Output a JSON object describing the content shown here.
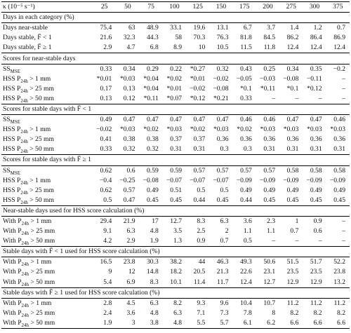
{
  "table": {
    "header": [
      "κ (10⁻⁵ s⁻¹)",
      "25",
      "50",
      "75",
      "100",
      "125",
      "150",
      "175",
      "200",
      "275",
      "300",
      "375"
    ],
    "sections": [
      {
        "title": "Days in each category (%)",
        "rows": [
          {
            "label": {
              "text": "Days near-stable"
            },
            "cells": [
              "75.4",
              "63",
              "48.9",
              "33.1",
              "19.6",
              "13.1",
              "6.7",
              "3.7",
              "1.4",
              "1.2",
              "0.7"
            ]
          },
          {
            "label": {
              "text": "Days stable, F̄ < 1"
            },
            "cells": [
              "21.6",
              "32.3",
              "44.3",
              "58",
              "70.3",
              "76.3",
              "81.8",
              "84.5",
              "86.2",
              "86.4",
              "86.9"
            ]
          },
          {
            "label": {
              "text": "Days stable, F̄ ≥ 1"
            },
            "cells": [
              "2.9",
              "4.7",
              "6.8",
              "8.9",
              "10",
              "10.5",
              "11.5",
              "11.8",
              "12.4",
              "12.4",
              "12.4"
            ]
          }
        ]
      },
      {
        "title": "Scores for near-stable days",
        "rows": [
          {
            "label": {
              "text": "SS",
              "sub": "MSE"
            },
            "cells": [
              "0.33",
              "0.34",
              "0.29",
              "0.22",
              "*0.27",
              "0.32",
              "0.43",
              "0.25",
              "0.34",
              "0.35",
              "−0.2"
            ]
          },
          {
            "label": {
              "text": "HSS P",
              "sub": "24h",
              "after": " > 1 mm"
            },
            "cells": [
              "*0.01",
              "*0.03",
              "*0.04",
              "*0.02",
              "*0.01",
              "−0.02",
              "−0.05",
              "−0.03",
              "−0.08",
              "−0.11",
              "–"
            ]
          },
          {
            "label": {
              "text": "HSS P",
              "sub": "24h",
              "after": " > 25 mm"
            },
            "cells": [
              "0.17",
              "0.13",
              "*0.04",
              "*0.01",
              "−0.02",
              "−0.08",
              "*0.1",
              "*0.11",
              "*0.1",
              "*0.12",
              "–"
            ]
          },
          {
            "label": {
              "text": "HSS P",
              "sub": "24h",
              "after": " > 50 mm"
            },
            "cells": [
              "0.13",
              "0.12",
              "*0.11",
              "*0.07",
              "*0.12",
              "*0.21",
              "0.33",
              "–",
              "–",
              "–",
              "–"
            ]
          }
        ]
      },
      {
        "title": "Scores for stable days with F̄ < 1",
        "rows": [
          {
            "label": {
              "text": "SS",
              "sub": "MSE"
            },
            "cells": [
              "0.49",
              "0.47",
              "0.47",
              "0.47",
              "0.47",
              "0.47",
              "0.46",
              "0.46",
              "0.47",
              "0.47",
              "0.46"
            ]
          },
          {
            "label": {
              "text": "HSS P",
              "sub": "24h",
              "after": " > 1 mm"
            },
            "cells": [
              "−0.02",
              "*0.03",
              "*0.02",
              "*0.03",
              "*0.02",
              "*0.03",
              "*0.02",
              "*0.03",
              "*0.03",
              "*0.03",
              "*0.03"
            ]
          },
          {
            "label": {
              "text": "HSS P",
              "sub": "24h",
              "after": " > 25 mm"
            },
            "cells": [
              "0.41",
              "0.38",
              "0.38",
              "0.37",
              "0.37",
              "0.36",
              "0.36",
              "0.36",
              "0.36",
              "0.36",
              "0.36"
            ]
          },
          {
            "label": {
              "text": "HSS P",
              "sub": "24h",
              "after": " > 50 mm"
            },
            "cells": [
              "0.33",
              "0.32",
              "0.32",
              "0.31",
              "0.31",
              "0.3",
              "0.3",
              "0.31",
              "0.31",
              "0.31",
              "0.31"
            ]
          }
        ]
      },
      {
        "title": "Scores for stable days with F̄ ≥ 1",
        "rows": [
          {
            "label": {
              "text": "SS",
              "sub": "MSE"
            },
            "cells": [
              "0.62",
              "0.6",
              "0.59",
              "0.59",
              "0.57",
              "0.57",
              "0.57",
              "0.57",
              "0.58",
              "0.58",
              "0.58"
            ]
          },
          {
            "label": {
              "text": "HSS P",
              "sub": "24h",
              "after": " > 1 mm"
            },
            "cells": [
              "−0.4",
              "−0.25",
              "−0.08",
              "−0.07",
              "−0.07",
              "−0.07",
              "−0.09",
              "−0.09",
              "−0.09",
              "−0.09",
              "−0.09"
            ]
          },
          {
            "label": {
              "text": "HSS P",
              "sub": "24h",
              "after": " > 25 mm"
            },
            "cells": [
              "0.62",
              "0.57",
              "0.49",
              "0.51",
              "0.5",
              "0.5",
              "0.49",
              "0.49",
              "0.49",
              "0.49",
              "0.49"
            ]
          },
          {
            "label": {
              "text": "HSS P",
              "sub": "24h",
              "after": " > 50 mm"
            },
            "cells": [
              "0.5",
              "0.47",
              "0.45",
              "0.45",
              "0.44",
              "0.45",
              "0.44",
              "0.45",
              "0.45",
              "0.45",
              "0.45"
            ]
          }
        ]
      },
      {
        "title": "Near-stable days used for HSS score calculation (%)",
        "rows": [
          {
            "label": {
              "text": "With P",
              "sub": "24h",
              "after": " > 1 mm"
            },
            "cells": [
              "29.4",
              "21.9",
              "17",
              "12.7",
              "8.3",
              "6.3",
              "3.6",
              "2.3",
              "1",
              "0.9",
              "–"
            ]
          },
          {
            "label": {
              "text": "With P",
              "sub": "24h",
              "after": " > 25 mm"
            },
            "cells": [
              "9.1",
              "6.3",
              "4.8",
              "3.5",
              "2.5",
              "2",
              "1.1",
              "1.1",
              "0.7",
              "0.6",
              "–"
            ]
          },
          {
            "label": {
              "text": "With P",
              "sub": "24h",
              "after": " > 50 mm"
            },
            "cells": [
              "4.2",
              "2.9",
              "1.9",
              "1.3",
              "0.9",
              "0.7",
              "0.5",
              "–",
              "–",
              "–",
              "–"
            ]
          }
        ]
      },
      {
        "title": "Stable days with F̄ < 1 used for HSS score calculation (%)",
        "rows": [
          {
            "label": {
              "text": "With P",
              "sub": "24h",
              "after": " > 1 mm"
            },
            "cells": [
              "16.5",
              "23.8",
              "30.3",
              "38.2",
              "44",
              "46.3",
              "49.3",
              "50.6",
              "51.5",
              "51.7",
              "52.2"
            ]
          },
          {
            "label": {
              "text": "With P",
              "sub": "24h",
              "after": " > 25 mm"
            },
            "cells": [
              "9",
              "12",
              "14.8",
              "18.2",
              "20.5",
              "21.3",
              "22.6",
              "23.1",
              "23.5",
              "23.5",
              "23.8"
            ]
          },
          {
            "label": {
              "text": "With P",
              "sub": "24h",
              "after": " > 50 mm"
            },
            "cells": [
              "5.4",
              "6.9",
              "8.3",
              "10.1",
              "11.4",
              "11.7",
              "12.4",
              "12.7",
              "12.9",
              "12.9",
              "13.2"
            ]
          }
        ]
      },
      {
        "title": "Stable days with F̄ ≥ 1 used for HSS score calculation (%)",
        "rows": [
          {
            "label": {
              "text": "With P",
              "sub": "24h",
              "after": " > 1 mm"
            },
            "cells": [
              "2.8",
              "4.5",
              "6.3",
              "8.2",
              "9.3",
              "9.6",
              "10.4",
              "10.7",
              "11.2",
              "11.2",
              "11.2"
            ]
          },
          {
            "label": {
              "text": "With P",
              "sub": "24h",
              "after": " > 25 mm"
            },
            "cells": [
              "2.4",
              "3.6",
              "4.8",
              "6.3",
              "7.1",
              "7.3",
              "7.8",
              "8",
              "8.2",
              "8.2",
              "8.2"
            ]
          },
          {
            "label": {
              "text": "With P",
              "sub": "24h",
              "after": " > 50 mm"
            },
            "cells": [
              "1.9",
              "3",
              "3.8",
              "4.8",
              "5.5",
              "5.7",
              "6.1",
              "6.2",
              "6.6",
              "6.6",
              "6.6"
            ]
          }
        ]
      }
    ]
  }
}
